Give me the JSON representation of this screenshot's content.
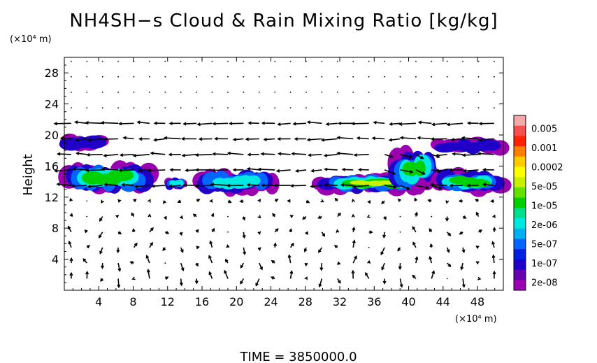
{
  "chart_data": {
    "type": "heatmap",
    "title": "NH4SH−s Cloud & Rain Mixing Ratio [kg/kg]",
    "ylabel": "Height",
    "y_unit": "(×10⁴ m)",
    "x_unit": "(×10⁴ m)",
    "xlim": [
      0,
      51
    ],
    "ylim": [
      0,
      30
    ],
    "xticks": [
      4,
      8,
      12,
      16,
      20,
      24,
      28,
      32,
      36,
      40,
      44,
      48
    ],
    "yticks": [
      4,
      8,
      12,
      16,
      20,
      24,
      28
    ],
    "time_label": "TIME  =  3850000.0",
    "colorbar": {
      "labels": [
        "0.005",
        "0.001",
        "0.0002",
        "5e-05",
        "1e-05",
        "2e-06",
        "5e-07",
        "1e-07",
        "2e-08"
      ],
      "colors": [
        "#f4a8a8",
        "#f45050",
        "#ff2200",
        "#ff8000",
        "#ffcc00",
        "#ffff00",
        "#c8f000",
        "#66e000",
        "#00d000",
        "#00e08a",
        "#00e8e0",
        "#00b0f0",
        "#0066ff",
        "#0020e0",
        "#2000c8",
        "#6600b0",
        "#9a00b0"
      ]
    },
    "cloud_regions": [
      {
        "x": [
          0,
          4.5
        ],
        "y": [
          18,
          20
        ],
        "level": "1e-07"
      },
      {
        "x": [
          0,
          10.5
        ],
        "y": [
          12.5,
          16.5
        ],
        "level": "5e-05"
      },
      {
        "x": [
          12,
          14
        ],
        "y": [
          13,
          14.5
        ],
        "level": "5e-06"
      },
      {
        "x": [
          15.5,
          24.5
        ],
        "y": [
          12.5,
          15.5
        ],
        "level": "1e-05"
      },
      {
        "x": [
          29,
          42.5
        ],
        "y": [
          12.5,
          15
        ],
        "level": "0.0002"
      },
      {
        "x": [
          38,
          43
        ],
        "y": [
          13,
          18
        ],
        "level": "5e-05"
      },
      {
        "x": [
          43,
          51
        ],
        "y": [
          12.5,
          15.5
        ],
        "level": "5e-05"
      },
      {
        "x": [
          43,
          51
        ],
        "y": [
          17.5,
          19.5
        ],
        "level": "1e-07"
      }
    ]
  }
}
